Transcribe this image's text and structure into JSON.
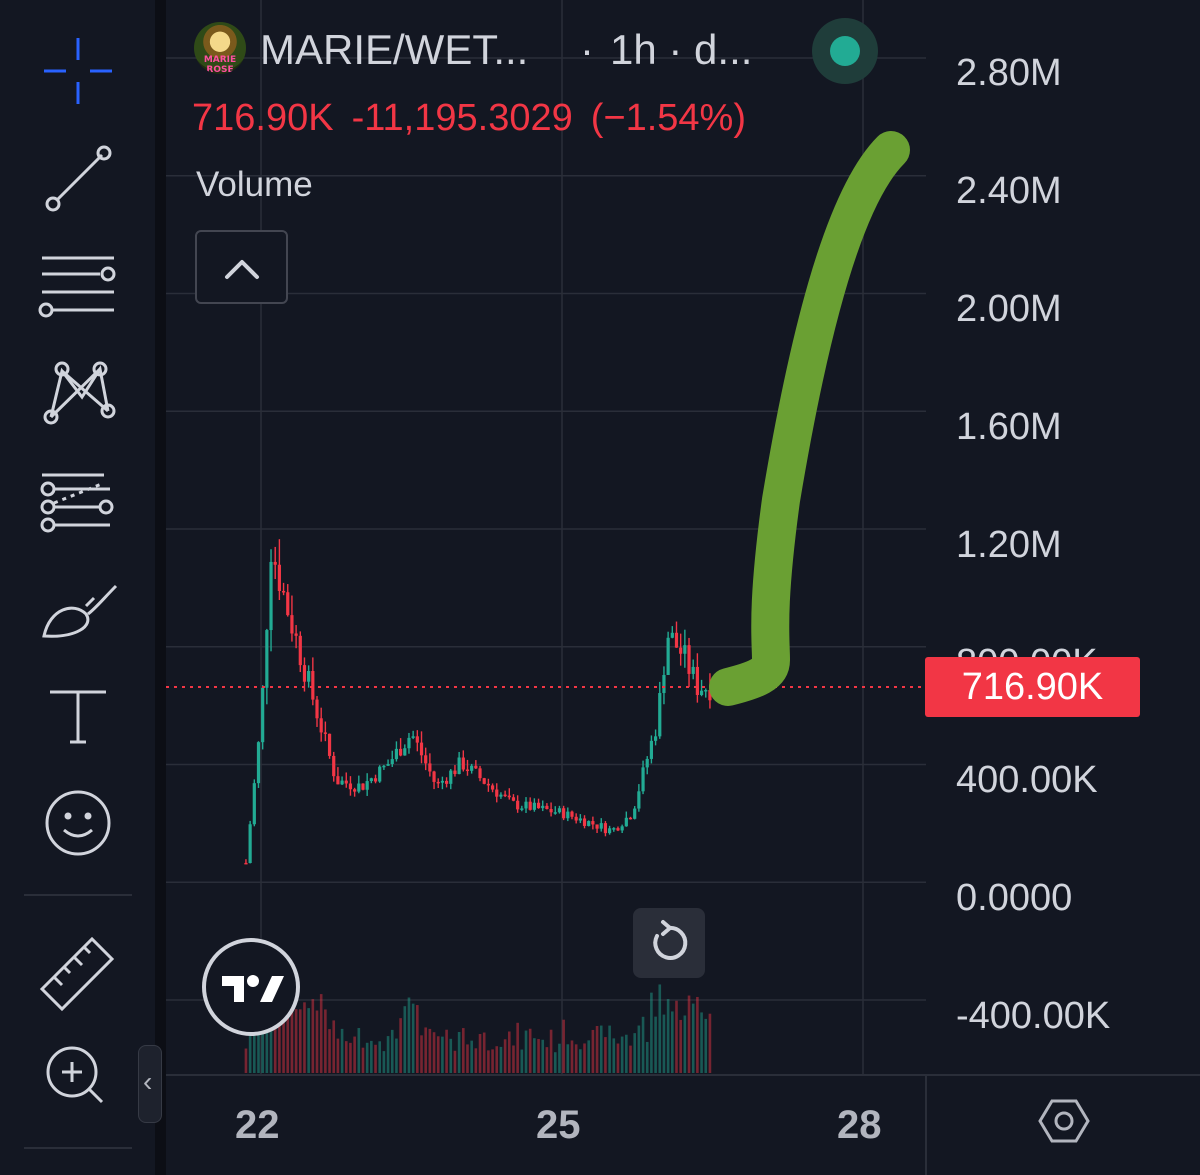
{
  "toolbar": {
    "tools": [
      {
        "name": "crosshair-icon",
        "active": true
      },
      {
        "name": "trend-line-icon"
      },
      {
        "name": "horizontal-lines-icon"
      },
      {
        "name": "pattern-icon"
      },
      {
        "name": "fib-icon"
      },
      {
        "name": "brush-icon"
      },
      {
        "name": "text-icon"
      },
      {
        "name": "emoji-icon"
      },
      {
        "name": "ruler-icon"
      },
      {
        "name": "zoom-in-icon"
      }
    ],
    "collapse_glyph": "‹"
  },
  "legend": {
    "symbol": "MARIE/WET...",
    "separator": "·",
    "interval": "1h · d...",
    "avatar_caption": "MARIE ROSE",
    "status": "connected",
    "last_price": "716.90K",
    "change": "-11,195.3029",
    "change_pct": "(−1.54%)",
    "volume_label": "Volume",
    "collapse_glyph": "⌃"
  },
  "price_scale": {
    "labels": [
      "2.80M",
      "2.40M",
      "2.00M",
      "1.60M",
      "1.20M",
      "800.00K",
      "400.00K",
      "0.0000",
      "-400.00K"
    ],
    "current_price_tag": "716.90K"
  },
  "time_scale": {
    "labels": [
      "22",
      "25",
      "28"
    ]
  },
  "colors": {
    "background": "#131722",
    "up": "#22ab94",
    "down": "#f23645",
    "annotation": "#6aa033",
    "grid": "#2a2e39"
  },
  "chart_data": {
    "type": "candlestick",
    "symbol": "MARIE/WET...",
    "interval": "1h",
    "y_range": [
      -400000,
      2800000
    ],
    "x_ticks": [
      "22",
      "25",
      "28"
    ],
    "last_price": 716900,
    "close_series": [
      {
        "day": 21.85,
        "close": 120000
      },
      {
        "day": 22.0,
        "close": 600000
      },
      {
        "day": 22.1,
        "close": 1200000
      },
      {
        "day": 22.25,
        "close": 1000000
      },
      {
        "day": 22.5,
        "close": 700000
      },
      {
        "day": 22.75,
        "close": 400000
      },
      {
        "day": 23.0,
        "close": 380000
      },
      {
        "day": 23.25,
        "close": 450000
      },
      {
        "day": 23.5,
        "close": 560000
      },
      {
        "day": 23.75,
        "close": 380000
      },
      {
        "day": 24.0,
        "close": 460000
      },
      {
        "day": 24.5,
        "close": 320000
      },
      {
        "day": 25.0,
        "close": 290000
      },
      {
        "day": 25.5,
        "close": 230000
      },
      {
        "day": 25.7,
        "close": 290000
      },
      {
        "day": 25.95,
        "close": 600000
      },
      {
        "day": 26.05,
        "close": 900000
      },
      {
        "day": 26.2,
        "close": 830000
      },
      {
        "day": 26.35,
        "close": 720000
      },
      {
        "day": 26.5,
        "close": 716900
      }
    ]
  }
}
